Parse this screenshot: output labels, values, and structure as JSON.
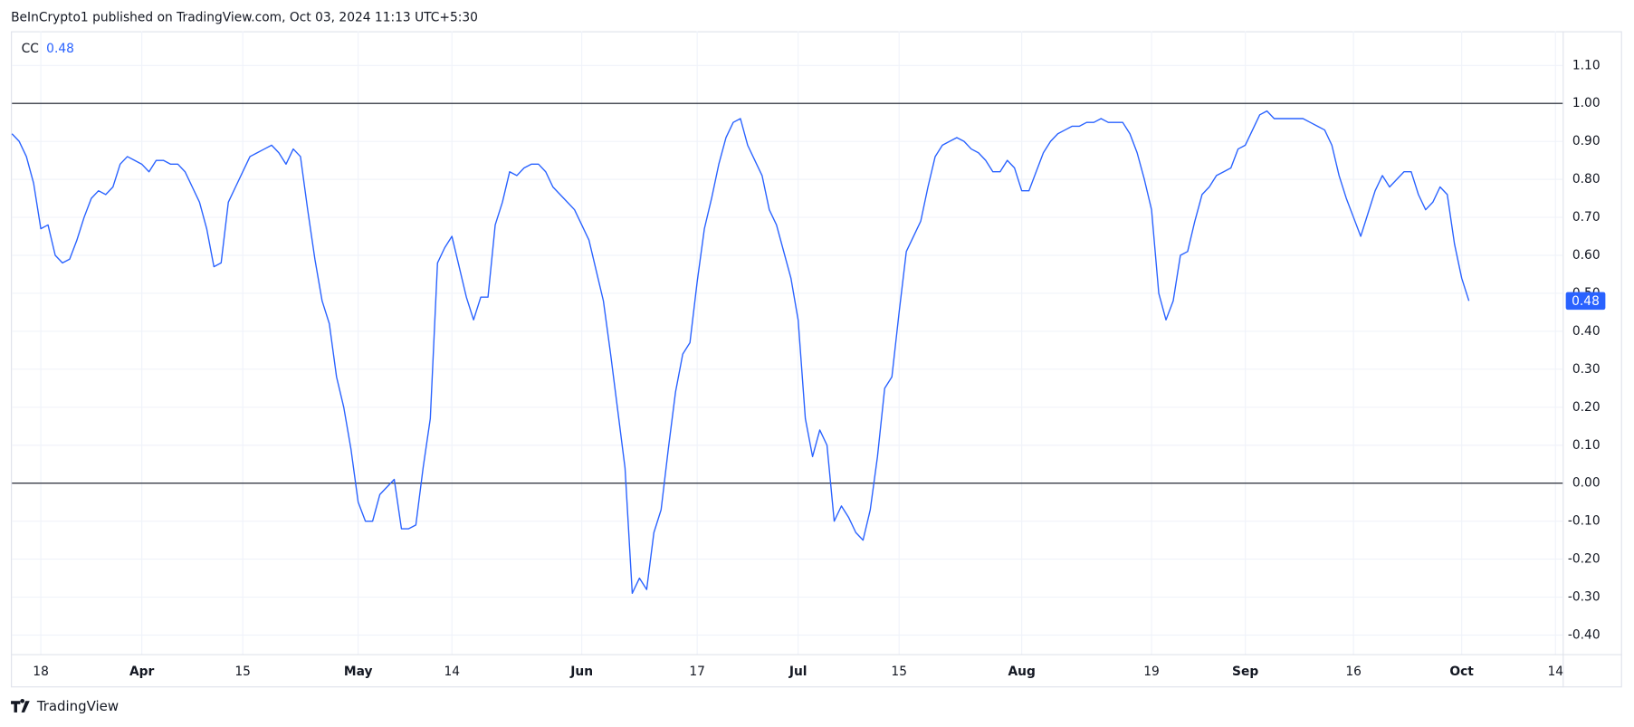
{
  "header": "BeInCrypto1 published on TradingView.com, Oct 03, 2024 11:13 UTC+5:30",
  "footer": "TradingView",
  "chart_data": {
    "type": "line",
    "series": [
      {
        "name": "CC",
        "color": "#2962ff",
        "values": [
          0.92,
          0.9,
          0.86,
          0.79,
          0.67,
          0.68,
          0.6,
          0.58,
          0.59,
          0.64,
          0.7,
          0.75,
          0.77,
          0.76,
          0.78,
          0.84,
          0.86,
          0.85,
          0.84,
          0.82,
          0.85,
          0.85,
          0.84,
          0.84,
          0.82,
          0.78,
          0.74,
          0.67,
          0.57,
          0.58,
          0.74,
          0.78,
          0.82,
          0.86,
          0.87,
          0.88,
          0.89,
          0.87,
          0.84,
          0.88,
          0.86,
          0.72,
          0.59,
          0.48,
          0.42,
          0.28,
          0.2,
          0.09,
          -0.05,
          -0.1,
          -0.1,
          -0.03,
          -0.01,
          0.01,
          -0.12,
          -0.12,
          -0.11,
          0.04,
          0.17,
          0.58,
          0.62,
          0.65,
          0.57,
          0.49,
          0.43,
          0.49,
          0.49,
          0.68,
          0.74,
          0.82,
          0.81,
          0.83,
          0.84,
          0.84,
          0.82,
          0.78,
          0.76,
          0.74,
          0.72,
          0.68,
          0.64,
          0.56,
          0.48,
          0.34,
          0.19,
          0.04,
          -0.29,
          -0.25,
          -0.28,
          -0.13,
          -0.07,
          0.09,
          0.24,
          0.34,
          0.37,
          0.53,
          0.67,
          0.75,
          0.84,
          0.91,
          0.95,
          0.96,
          0.89,
          0.85,
          0.81,
          0.72,
          0.68,
          0.61,
          0.54,
          0.43,
          0.17,
          0.07,
          0.14,
          0.1,
          -0.1,
          -0.06,
          -0.09,
          -0.13,
          -0.15,
          -0.07,
          0.07,
          0.25,
          0.28,
          0.45,
          0.61,
          0.65,
          0.69,
          0.78,
          0.86,
          0.89,
          0.9,
          0.91,
          0.9,
          0.88,
          0.87,
          0.85,
          0.82,
          0.82,
          0.85,
          0.83,
          0.77,
          0.77,
          0.82,
          0.87,
          0.9,
          0.92,
          0.93,
          0.94,
          0.94,
          0.95,
          0.95,
          0.96,
          0.95,
          0.95,
          0.95,
          0.92,
          0.87,
          0.8,
          0.72,
          0.5,
          0.43,
          0.48,
          0.6,
          0.61,
          0.69,
          0.76,
          0.78,
          0.81,
          0.82,
          0.83,
          0.88,
          0.89,
          0.93,
          0.97,
          0.98,
          0.96,
          0.96,
          0.96,
          0.96,
          0.96,
          0.95,
          0.94,
          0.93,
          0.89,
          0.81,
          0.75,
          0.7,
          0.65,
          0.71,
          0.77,
          0.81,
          0.78,
          0.8,
          0.82,
          0.82,
          0.76,
          0.72,
          0.74,
          0.78,
          0.76,
          0.63,
          0.54,
          0.48
        ]
      }
    ],
    "xlim": [
      0,
      215
    ],
    "xticks": [
      {
        "value": 4,
        "label": "18"
      },
      {
        "value": 18,
        "label": "Apr"
      },
      {
        "value": 32,
        "label": "15"
      },
      {
        "value": 48,
        "label": "May"
      },
      {
        "value": 61,
        "label": "14"
      },
      {
        "value": 79,
        "label": "Jun"
      },
      {
        "value": 95,
        "label": "17"
      },
      {
        "value": 109,
        "label": "Jul"
      },
      {
        "value": 123,
        "label": "15"
      },
      {
        "value": 140,
        "label": "Aug"
      },
      {
        "value": 158,
        "label": "19"
      },
      {
        "value": 171,
        "label": "Sep"
      },
      {
        "value": 186,
        "label": "16"
      },
      {
        "value": 201,
        "label": "Oct"
      },
      {
        "value": 214,
        "label": "14"
      }
    ],
    "ylim": [
      -0.45,
      1.19
    ],
    "yticks": [
      {
        "value": 1.1,
        "label": "1.10"
      },
      {
        "value": 1.0,
        "label": "1.00"
      },
      {
        "value": 0.9,
        "label": "0.90"
      },
      {
        "value": 0.8,
        "label": "0.80"
      },
      {
        "value": 0.7,
        "label": "0.70"
      },
      {
        "value": 0.6,
        "label": "0.60"
      },
      {
        "value": 0.5,
        "label": "0.50"
      },
      {
        "value": 0.4,
        "label": "0.40"
      },
      {
        "value": 0.3,
        "label": "0.30"
      },
      {
        "value": 0.2,
        "label": "0.20"
      },
      {
        "value": 0.1,
        "label": "0.10"
      },
      {
        "value": 0.0,
        "label": "0.00"
      },
      {
        "value": -0.1,
        "label": "-0.10"
      },
      {
        "value": -0.2,
        "label": "-0.20"
      },
      {
        "value": -0.3,
        "label": "-0.30"
      },
      {
        "value": -0.4,
        "label": "-0.40"
      }
    ],
    "reference_lines": [
      1.0,
      0.0
    ],
    "grid": true
  }
}
